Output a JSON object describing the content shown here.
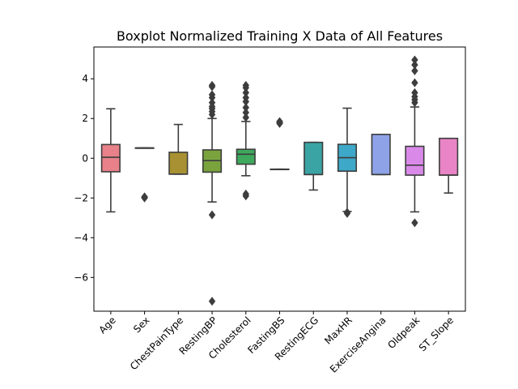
{
  "chart_data": {
    "type": "boxplot",
    "title": "Boxplot Normalized Training X Data of All Features",
    "xlabel": "",
    "ylabel": "",
    "ylim": [
      -7.7,
      5.6
    ],
    "yticks": [
      4,
      2,
      0,
      -2,
      -4,
      -6
    ],
    "ytick_labels": [
      "4",
      "2",
      "0",
      "−2",
      "−4",
      "−6"
    ],
    "grid": false,
    "legend": "none",
    "categories": [
      "Age",
      "Sex",
      "ChestPainType",
      "RestingBP",
      "Cholesterol",
      "FastingBS",
      "RestingECG",
      "MaxHR",
      "ExerciseAngina",
      "Oldpeak",
      "ST_Slope"
    ],
    "colors": [
      "#e8818a",
      "#c8901c",
      "#a89132",
      "#7aa33e",
      "#3ea95d",
      "#3da48e",
      "#3aa3a4",
      "#3ea8c8",
      "#8ea2e8",
      "#d98ae8",
      "#e985c6"
    ],
    "line_color": "#3d3d3d",
    "boxes": [
      {
        "name": "Age",
        "whislo": -2.7,
        "q1": -0.68,
        "med": 0.05,
        "q3": 0.69,
        "whishi": 2.49,
        "fliers": []
      },
      {
        "name": "Sex",
        "whislo": 0.52,
        "q1": 0.52,
        "med": 0.52,
        "q3": 0.52,
        "whishi": 0.52,
        "fliers": [
          -1.94,
          -2.0,
          -1.97
        ]
      },
      {
        "name": "ChestPainType",
        "whislo": -0.8,
        "q1": -0.8,
        "med": -0.8,
        "q3": 0.3,
        "whishi": 1.7,
        "fliers": []
      },
      {
        "name": "RestingBP",
        "whislo": -2.2,
        "q1": -0.7,
        "med": -0.12,
        "q3": 0.42,
        "whishi": 2.0,
        "fliers": [
          -2.85,
          -7.2,
          2.2,
          2.35,
          2.5,
          2.6,
          2.8,
          3.05,
          3.2,
          3.6,
          3.67
        ]
      },
      {
        "name": "Cholesterol",
        "whislo": -0.88,
        "q1": -0.3,
        "med": 0.2,
        "q3": 0.45,
        "whishi": 1.85,
        "fliers": [
          -1.8,
          -1.9,
          2.05,
          2.3,
          2.55,
          2.85,
          3.05,
          3.3,
          3.55,
          3.67
        ]
      },
      {
        "name": "FastingBS",
        "whislo": -0.55,
        "q1": -0.55,
        "med": -0.55,
        "q3": -0.55,
        "whishi": -0.55,
        "fliers": [
          1.75,
          1.8,
          1.85
        ]
      },
      {
        "name": "RestingECG",
        "whislo": -1.6,
        "q1": -0.82,
        "med": -0.82,
        "q3": 0.8,
        "whishi": 0.8,
        "fliers": []
      },
      {
        "name": "MaxHR",
        "whislo": -2.68,
        "q1": -0.65,
        "med": 0.03,
        "q3": 0.7,
        "whishi": 2.52,
        "fliers": [
          -2.78,
          -2.72
        ]
      },
      {
        "name": "ExerciseAngina",
        "whislo": -0.82,
        "q1": -0.82,
        "med": -0.82,
        "q3": 1.2,
        "whishi": 1.2,
        "fliers": []
      },
      {
        "name": "Oldpeak",
        "whislo": -2.7,
        "q1": -0.85,
        "med": -0.35,
        "q3": 0.6,
        "whishi": 2.58,
        "fliers": [
          -3.25,
          2.8,
          2.95,
          3.1,
          3.3,
          3.8,
          4.4,
          4.7,
          4.95
        ]
      },
      {
        "name": "ST_Slope",
        "whislo": -1.75,
        "q1": -0.85,
        "med": -0.85,
        "q3": 1.0,
        "whishi": 1.0,
        "fliers": []
      }
    ]
  }
}
